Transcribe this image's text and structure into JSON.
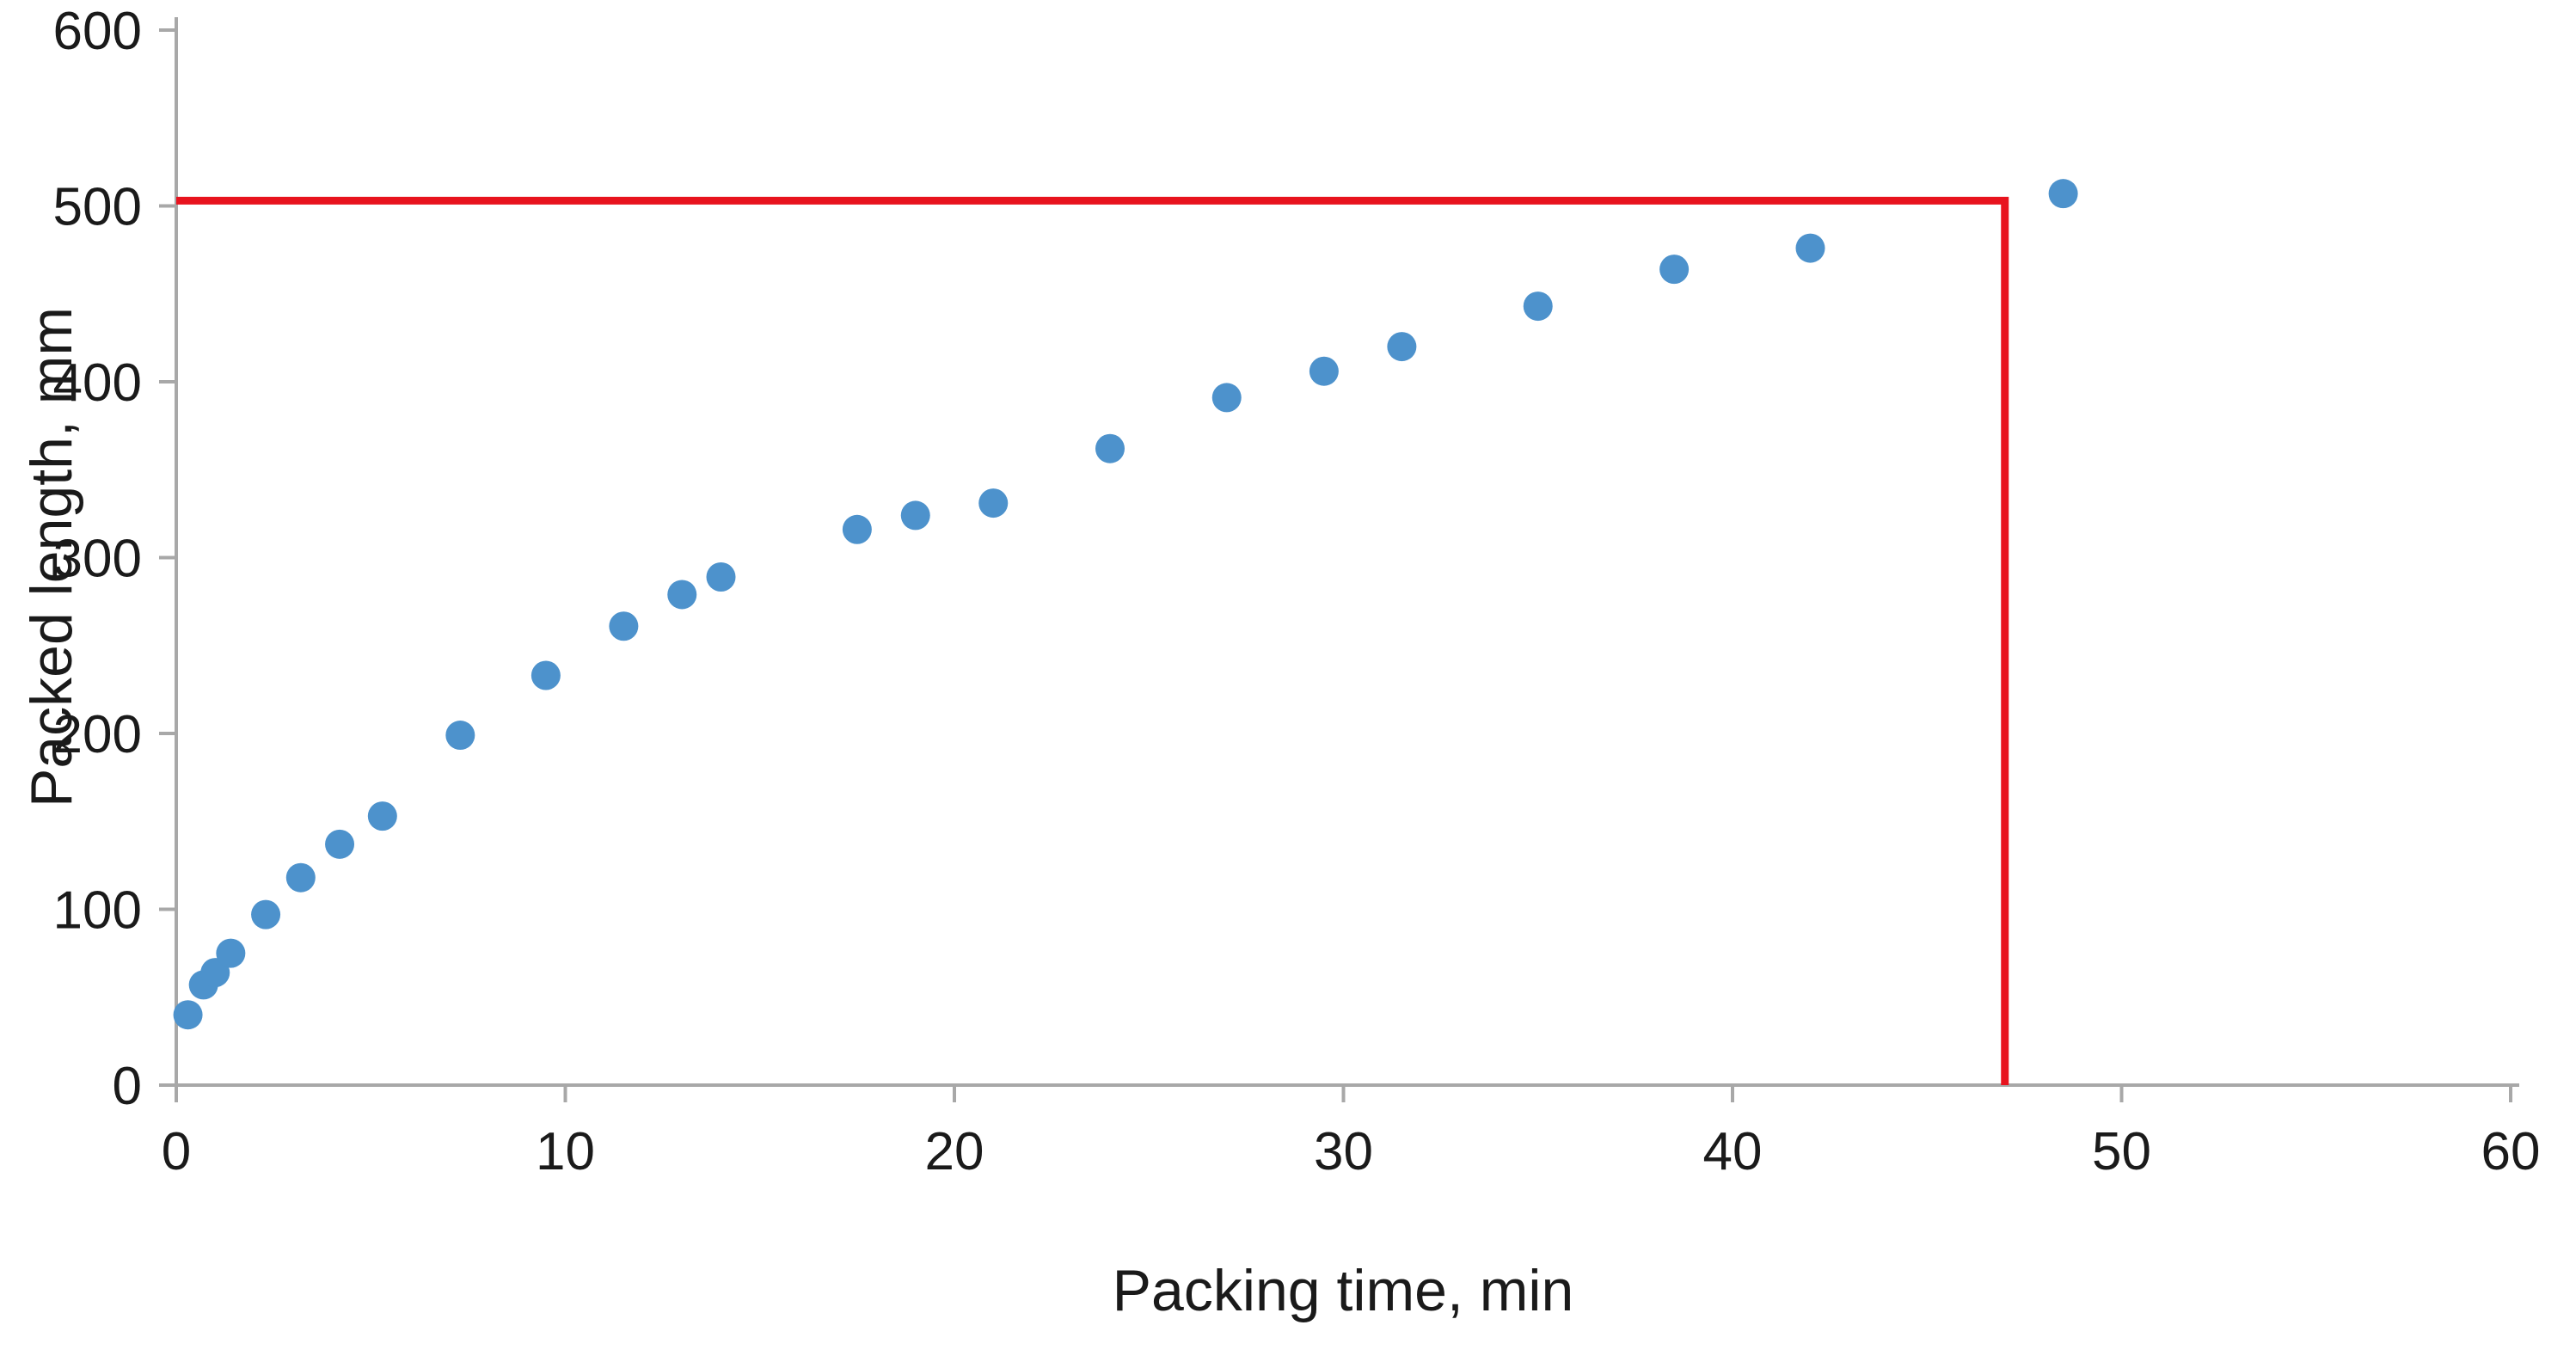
{
  "chart_data": {
    "type": "scatter",
    "title": "",
    "xlabel": "Packing time, min",
    "ylabel": "Packed length, mm",
    "xlim": [
      0,
      60
    ],
    "ylim": [
      0,
      600
    ],
    "xticks": [
      0,
      10,
      20,
      30,
      40,
      50,
      60
    ],
    "yticks": [
      0,
      100,
      200,
      300,
      400,
      500,
      600
    ],
    "grid": false,
    "legend": null,
    "point_color": "#4d92cc",
    "axis_color": "#a8a8a8",
    "points": [
      [
        0.3,
        40
      ],
      [
        0.7,
        57
      ],
      [
        1.0,
        64
      ],
      [
        1.4,
        75
      ],
      [
        2.3,
        97
      ],
      [
        3.2,
        118
      ],
      [
        4.2,
        137
      ],
      [
        5.3,
        153
      ],
      [
        7.3,
        199
      ],
      [
        9.5,
        233
      ],
      [
        11.5,
        261
      ],
      [
        13.0,
        279
      ],
      [
        14.0,
        289
      ],
      [
        17.5,
        316
      ],
      [
        19.0,
        324
      ],
      [
        21.0,
        331
      ],
      [
        24.0,
        362
      ],
      [
        27.0,
        391
      ],
      [
        29.5,
        406
      ],
      [
        31.5,
        420
      ],
      [
        35.0,
        443
      ],
      [
        38.5,
        464
      ],
      [
        42.0,
        476
      ],
      [
        48.5,
        507
      ]
    ],
    "annotation_line": {
      "color": "#e8131e",
      "y_value": 503,
      "x_value": 47
    }
  }
}
